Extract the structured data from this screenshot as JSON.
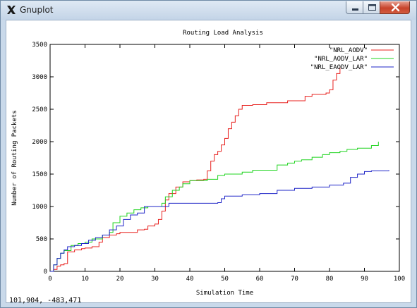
{
  "window": {
    "title": "Gnuplot",
    "icon": "x-logo-icon",
    "controls": [
      "minimize",
      "maximize",
      "close"
    ]
  },
  "status_bar": {
    "coordinates": "101,904, -483,471"
  },
  "chart_data": {
    "type": "line",
    "title": "Routing Load Analysis",
    "xlabel": "Simulation Time",
    "ylabel": "Number of Routing Packets",
    "xlim": [
      0,
      100
    ],
    "ylim": [
      0,
      3500
    ],
    "xticks": [
      0,
      10,
      20,
      30,
      40,
      50,
      60,
      70,
      80,
      90,
      100
    ],
    "yticks": [
      0,
      500,
      1000,
      1500,
      2000,
      2500,
      3000,
      3500
    ],
    "legend_position": "top-right",
    "grid": false,
    "series": [
      {
        "name": "\"NRL_AODV\"",
        "color": "#e8201e",
        "x": [
          0,
          1,
          2,
          3,
          4,
          5,
          7,
          9,
          10,
          12,
          14,
          15,
          17,
          19,
          20,
          22,
          25,
          27,
          28,
          30,
          31,
          32,
          33,
          34,
          36,
          38,
          40,
          42,
          43,
          44,
          45,
          46,
          47,
          48,
          49,
          50,
          51,
          52,
          53,
          54,
          55,
          58,
          62,
          65,
          68,
          70,
          72,
          73,
          75,
          78,
          79,
          80,
          81,
          82,
          83
        ],
        "y": [
          0,
          30,
          80,
          100,
          120,
          300,
          330,
          350,
          360,
          380,
          450,
          520,
          560,
          580,
          600,
          600,
          640,
          650,
          700,
          730,
          800,
          930,
          1100,
          1200,
          1300,
          1380,
          1400,
          1410,
          1410,
          1420,
          1550,
          1700,
          1800,
          1850,
          1950,
          2050,
          2200,
          2300,
          2400,
          2500,
          2560,
          2570,
          2600,
          2600,
          2630,
          2630,
          2630,
          2700,
          2730,
          2730,
          2750,
          2800,
          2950,
          3050,
          3150
        ]
      },
      {
        "name": "\"NRL_AODV_LAR\"",
        "color": "#1fd41f",
        "x": [
          0,
          1,
          2,
          3,
          4,
          6,
          8,
          10,
          12,
          15,
          17,
          18,
          20,
          22,
          24,
          26,
          28,
          30,
          32,
          33,
          35,
          37,
          38,
          40,
          42,
          45,
          48,
          50,
          55,
          58,
          60,
          65,
          68,
          70,
          72,
          75,
          78,
          80,
          83,
          85,
          88,
          92,
          94
        ],
        "y": [
          0,
          100,
          200,
          280,
          320,
          400,
          430,
          450,
          500,
          560,
          600,
          750,
          850,
          900,
          950,
          980,
          1000,
          1000,
          1050,
          1150,
          1250,
          1300,
          1350,
          1400,
          1400,
          1420,
          1480,
          1500,
          1530,
          1560,
          1560,
          1640,
          1670,
          1700,
          1720,
          1760,
          1800,
          1830,
          1850,
          1880,
          1900,
          1940,
          2000
        ]
      },
      {
        "name": "\"NRL_EAODV_LAR\"",
        "color": "#1e24c7",
        "x": [
          0,
          1,
          2,
          3,
          4,
          5,
          7,
          9,
          11,
          13,
          15,
          17,
          19,
          21,
          23,
          25,
          27,
          30,
          32,
          34,
          36,
          40,
          44,
          48,
          49,
          50,
          55,
          60,
          65,
          70,
          75,
          80,
          84,
          86,
          88,
          90,
          92,
          95,
          97
        ],
        "y": [
          0,
          100,
          200,
          280,
          330,
          380,
          400,
          430,
          480,
          520,
          560,
          640,
          700,
          800,
          870,
          900,
          1000,
          1000,
          1000,
          1050,
          1050,
          1050,
          1050,
          1060,
          1120,
          1160,
          1180,
          1200,
          1250,
          1280,
          1300,
          1330,
          1360,
          1450,
          1500,
          1540,
          1550,
          1550,
          1560
        ]
      }
    ]
  }
}
